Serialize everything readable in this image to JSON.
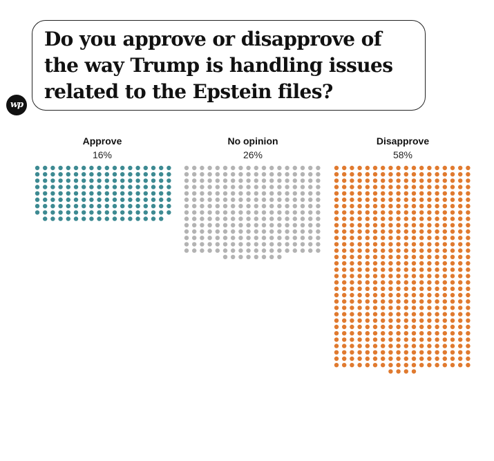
{
  "header": {
    "title": "Do you approve or disapprove of the way Trump is handling issues related to the Epstein files?",
    "logo_text": "wp"
  },
  "chart_data": {
    "type": "waffle",
    "title": "Do you approve or disapprove of the way Trump is handling issues related to the Epstein files?",
    "categories": [
      "Approve",
      "No opinion",
      "Disapprove"
    ],
    "values": [
      16,
      26,
      58
    ],
    "value_labels": [
      "16%",
      "26%",
      "58%"
    ],
    "dot_counts": [
      160,
      260,
      580
    ],
    "colors": [
      "#3d8a92",
      "#b3b3b3",
      "#e07a2f"
    ]
  }
}
